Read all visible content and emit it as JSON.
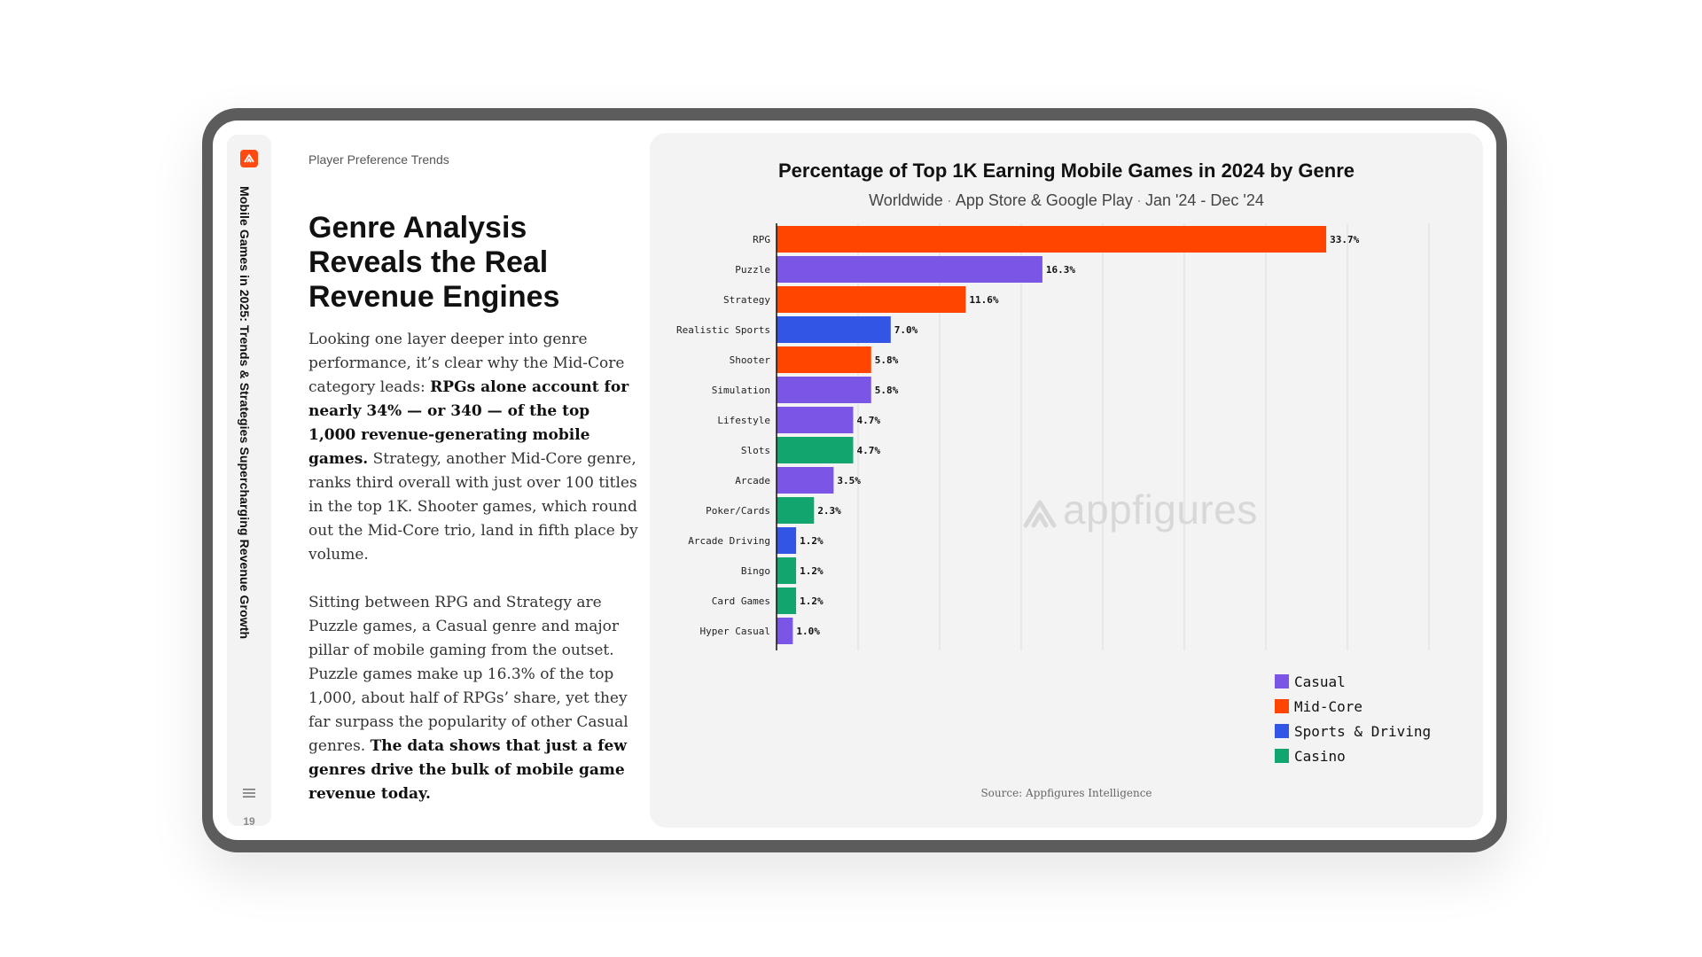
{
  "sidebar": {
    "document_title": "Mobile Games in 2025: Trends & Strategies Supercharging Revenue Growth",
    "page_number": "19",
    "brand_color": "#ff4b12"
  },
  "article": {
    "eyebrow": "Player Preference Trends",
    "headline": "Genre Analysis Reveals the Real Revenue Engines",
    "p1_a": "Looking one layer deeper into genre performance, it’s clear why the Mid-Core category leads: ",
    "p1_bold": "RPGs alone account for nearly 34% — or 340 — of the top 1,000 revenue-generating mobile games.",
    "p1_b": " Strategy, another Mid-Core genre, ranks third overall with just over 100 titles in the top 1K. Shooter games, which round out the Mid-Core trio, land in fifth place by volume.",
    "p2_a": "Sitting between RPG and Strategy are Puzzle games, a Casual genre and major pillar of mobile gaming from the outset. Puzzle games make up 16.3% of the top 1,000, about half of RPGs’ share, yet they far surpass the popularity of other Casual genres. ",
    "p2_bold": "The data shows that just a few genres drive the bulk of mobile game revenue today."
  },
  "chart_header": {
    "title": "Percentage of Top 1K Earning Mobile Games in 2024 by Genre",
    "sub_region": "Worldwide",
    "sub_stores": "App Store & Google Play",
    "sub_dates": "Jan '24 - Dec '24",
    "watermark": "appfigures",
    "source": "Source: Appfigures Intelligence"
  },
  "chart_data": {
    "type": "bar",
    "orientation": "horizontal",
    "categories": [
      "RPG",
      "Puzzle",
      "Strategy",
      "Realistic Sports",
      "Shooter",
      "Simulation",
      "Lifestyle",
      "Slots",
      "Arcade",
      "Poker/Cards",
      "Arcade Driving",
      "Bingo",
      "Card Games",
      "Hyper Casual"
    ],
    "values": [
      33.7,
      16.3,
      11.6,
      7.0,
      5.8,
      5.8,
      4.7,
      4.7,
      3.5,
      2.3,
      1.2,
      1.2,
      1.2,
      1.0
    ],
    "value_labels": [
      "33.7%",
      "16.3%",
      "11.6%",
      "7.0%",
      "5.8%",
      "5.8%",
      "4.7%",
      "4.7%",
      "3.5%",
      "2.3%",
      "1.2%",
      "1.2%",
      "1.2%",
      "1.0%"
    ],
    "groups": [
      "Mid-Core",
      "Casual",
      "Mid-Core",
      "Sports & Driving",
      "Mid-Core",
      "Casual",
      "Casual",
      "Casino",
      "Casual",
      "Casino",
      "Sports & Driving",
      "Casino",
      "Casino",
      "Casual"
    ],
    "legend": [
      {
        "name": "Casual",
        "color": "#7b55e6"
      },
      {
        "name": "Mid-Core",
        "color": "#ff4500"
      },
      {
        "name": "Sports & Driving",
        "color": "#3355e6"
      },
      {
        "name": "Casino",
        "color": "#12a66e"
      }
    ],
    "xlim": [
      0,
      40
    ],
    "grid": true,
    "legend_position": "bottom-right"
  }
}
